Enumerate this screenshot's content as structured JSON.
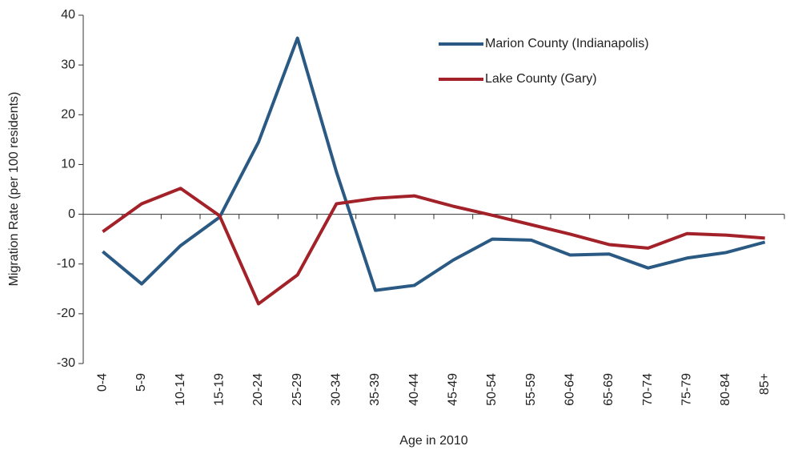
{
  "chart_data": {
    "type": "line",
    "y_label": "Migration Rate (per 100 residents)",
    "x_label": "Age in 2010",
    "categories": [
      "0-4",
      "5-9",
      "10-14",
      "15-19",
      "20-24",
      "25-29",
      "30-34",
      "35-39",
      "40-44",
      "45-49",
      "50-54",
      "55-59",
      "60-64",
      "65-69",
      "70-74",
      "75-79",
      "80-84",
      "85+"
    ],
    "series": [
      {
        "name": "Marion County (Indianapolis)",
        "color": "#2a5a83",
        "values": [
          -7.5,
          -14,
          -6.3,
          -0.6,
          14.5,
          35.4,
          8.5,
          -15.3,
          -14.3,
          -9.2,
          -5,
          -5.2,
          -8.2,
          -8,
          -10.8,
          -8.8,
          -7.7,
          -5.6
        ]
      },
      {
        "name": "Lake County (Gary)",
        "color": "#a32129",
        "values": [
          -3.5,
          2.1,
          5.2,
          -0.3,
          -18,
          -12.2,
          2.1,
          3.2,
          3.7,
          1.6,
          -0.2,
          -2.1,
          -4,
          -6.1,
          -6.8,
          -3.9,
          -4.2,
          -4.8
        ]
      }
    ],
    "ylim": [
      -30,
      40
    ],
    "yticks": [
      -30,
      -20,
      -10,
      0,
      10,
      20,
      30,
      40
    ],
    "grid": false,
    "legend": "top-right"
  }
}
